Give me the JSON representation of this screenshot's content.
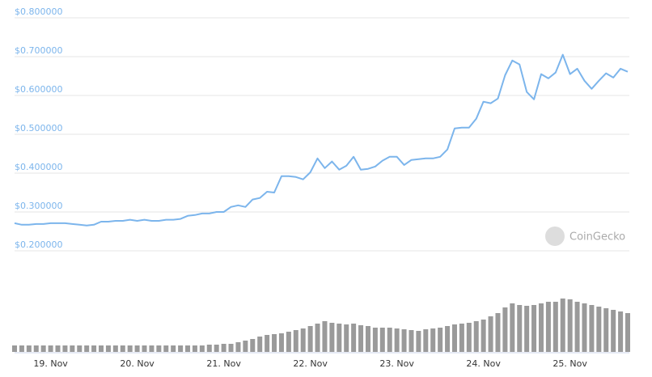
{
  "chart_data": {
    "type": "line",
    "categories": [
      null,
      null,
      null,
      null,
      null,
      "19. Nov",
      null,
      null,
      null,
      null,
      null,
      null,
      null,
      null,
      null,
      null,
      null,
      "20. Nov",
      null,
      null,
      null,
      null,
      null,
      null,
      null,
      null,
      null,
      null,
      null,
      "21. Nov",
      null,
      null,
      null,
      null,
      null,
      null,
      null,
      null,
      null,
      null,
      null,
      "22. Nov",
      null,
      null,
      null,
      null,
      null,
      null,
      null,
      null,
      null,
      null,
      null,
      "23. Nov",
      null,
      null,
      null,
      null,
      null,
      null,
      null,
      null,
      null,
      null,
      null,
      "24. Nov",
      null,
      null,
      null,
      null,
      null,
      null,
      null,
      null,
      null,
      null,
      null,
      "25. Nov",
      null,
      null,
      null,
      null,
      null,
      null,
      null,
      null
    ],
    "values": [
      0.271,
      0.267,
      0.267,
      0.269,
      0.269,
      0.271,
      0.271,
      0.271,
      0.269,
      0.267,
      0.265,
      0.267,
      0.275,
      0.275,
      0.277,
      0.277,
      0.28,
      0.277,
      0.28,
      0.277,
      0.277,
      0.28,
      0.28,
      0.282,
      0.29,
      0.292,
      0.296,
      0.296,
      0.3,
      0.3,
      0.313,
      0.317,
      0.313,
      0.332,
      0.336,
      0.352,
      0.35,
      0.392,
      0.392,
      0.39,
      0.384,
      0.402,
      0.438,
      0.413,
      0.43,
      0.409,
      0.419,
      0.442,
      0.409,
      0.411,
      0.417,
      0.432,
      0.442,
      0.442,
      0.421,
      0.434,
      0.436,
      0.438,
      0.438,
      0.442,
      0.461,
      0.515,
      0.517,
      0.517,
      0.54,
      0.584,
      0.58,
      0.592,
      0.652,
      0.69,
      0.68,
      0.609,
      0.59,
      0.655,
      0.644,
      0.659,
      0.705,
      0.655,
      0.669,
      0.638,
      0.617,
      0.638,
      0.657,
      0.646,
      0.669,
      0.661
    ],
    "color": "#7cb5ec",
    "ylim": [
      0.2,
      0.8
    ],
    "yticks": [
      {
        "value": 0.2,
        "label": "$0.200000"
      },
      {
        "value": 0.3,
        "label": "$0.300000"
      },
      {
        "value": 0.4,
        "label": "$0.400000"
      },
      {
        "value": 0.5,
        "label": "$0.500000"
      },
      {
        "value": 0.6,
        "label": "$0.600000"
      },
      {
        "value": 0.7,
        "label": "$0.700000"
      },
      {
        "value": 0.8,
        "label": "$0.800000"
      }
    ],
    "grid": true,
    "volume": {
      "color": "#9a9a9a",
      "ylim": [
        0,
        100
      ],
      "values": [
        8,
        8,
        8,
        8,
        8,
        8,
        8,
        8,
        8,
        8,
        8,
        8,
        8,
        8,
        8,
        8,
        8,
        8,
        8,
        8,
        8,
        8,
        8,
        8,
        8,
        8,
        8,
        9,
        9,
        10,
        10,
        12,
        14,
        16,
        19,
        21,
        22,
        23,
        25,
        27,
        29,
        32,
        35,
        38,
        36,
        35,
        34,
        35,
        33,
        32,
        30,
        30,
        30,
        29,
        28,
        27,
        26,
        28,
        29,
        30,
        32,
        34,
        35,
        36,
        38,
        40,
        44,
        48,
        55,
        60,
        58,
        57,
        58,
        60,
        62,
        62,
        66,
        65,
        62,
        60,
        58,
        56,
        54,
        52,
        50,
        48
      ]
    },
    "watermark": "CoinGecko"
  }
}
